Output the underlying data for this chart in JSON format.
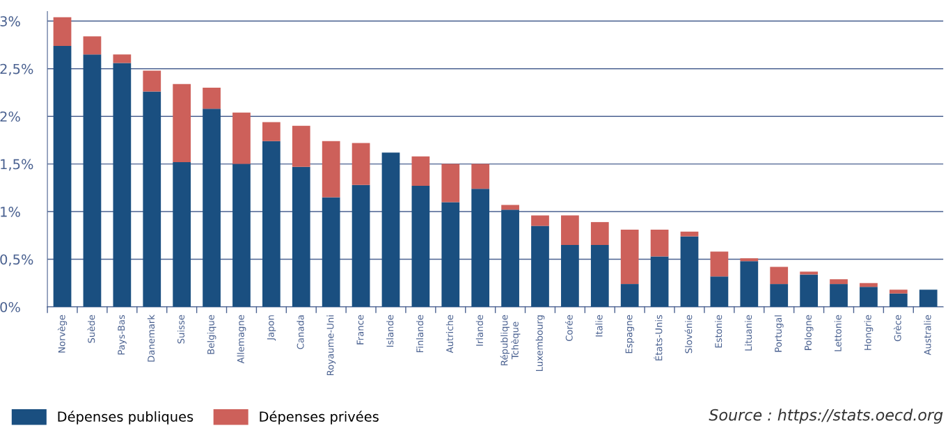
{
  "chart_data": {
    "type": "bar",
    "stacked": true,
    "categories": [
      "Norvège",
      "Suède",
      "Pays-Bas",
      "Danemark",
      "Suisse",
      "Belgique",
      "Allemagne",
      "Japon",
      "Canada",
      "Royaume-Uni",
      "France",
      "Islande",
      "Finlande",
      "Autriche",
      "Irlande",
      "République\nTchèque",
      "Luxembourg",
      "Corée",
      "Italie",
      "Espagne",
      "États-Unis",
      "Slovénie",
      "Estonie",
      "Lituanie",
      "Portugal",
      "Pologne",
      "Lettonie",
      "Hongrie",
      "Grèce",
      "Australie"
    ],
    "series": [
      {
        "name": "Dépenses publiques",
        "color": "#1a4f80",
        "values": [
          2.74,
          2.65,
          2.56,
          2.26,
          1.52,
          2.08,
          1.5,
          1.74,
          1.47,
          1.15,
          1.28,
          1.62,
          1.27,
          1.1,
          1.24,
          1.02,
          0.85,
          0.65,
          0.65,
          0.24,
          0.53,
          0.74,
          0.32,
          0.48,
          0.24,
          0.34,
          0.24,
          0.21,
          0.14,
          0.18
        ]
      },
      {
        "name": "Dépenses privées",
        "color": "#cd605a",
        "values": [
          0.3,
          0.19,
          0.09,
          0.22,
          0.82,
          0.22,
          0.54,
          0.2,
          0.43,
          0.59,
          0.44,
          0,
          0.31,
          0.4,
          0.26,
          0.05,
          0.11,
          0.31,
          0.24,
          0.57,
          0.28,
          0.05,
          0.26,
          0.03,
          0.18,
          0.03,
          0.05,
          0.04,
          0.04,
          0
        ]
      }
    ],
    "ylim": [
      0,
      3.1
    ],
    "yticks": [
      {
        "value": 0,
        "label": "0%"
      },
      {
        "value": 0.5,
        "label": "0,5%"
      },
      {
        "value": 1,
        "label": "1%"
      },
      {
        "value": 1.5,
        "label": "1,5%"
      },
      {
        "value": 2,
        "label": "2%"
      },
      {
        "value": 2.5,
        "label": "2,5%"
      },
      {
        "value": 3,
        "label": "3%"
      }
    ],
    "grid": "y",
    "legend": "bottom left",
    "annotations": [
      "Source : https://stats.oecd.org"
    ]
  }
}
